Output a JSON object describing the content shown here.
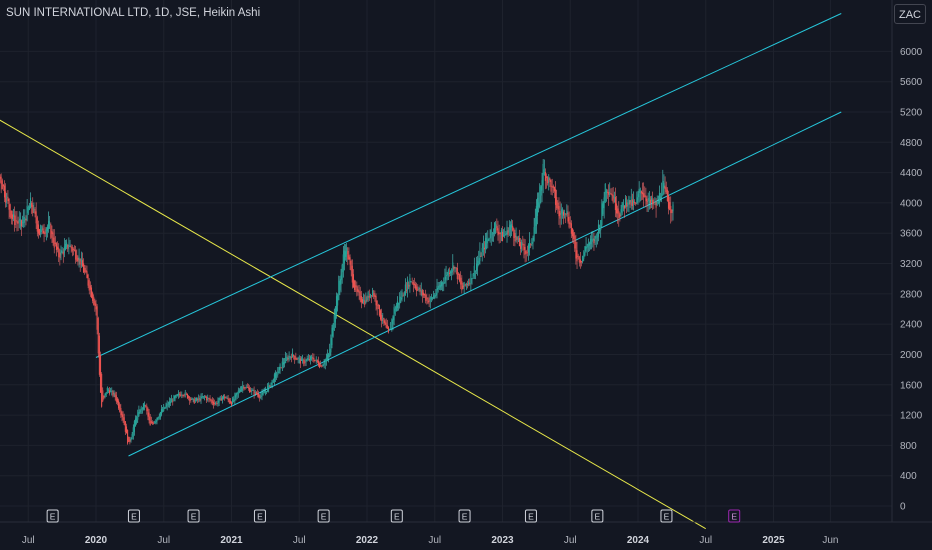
{
  "header": {
    "title": "SUN INTERNATIONAL LTD, 1D, JSE, Heikin Ashi"
  },
  "currency": "ZAC",
  "chart_data": {
    "type": "candlestick",
    "ylim": [
      -300,
      6400
    ],
    "y_ticks": [
      "6000",
      "5600",
      "5200",
      "4800",
      "4400",
      "4000",
      "3600",
      "3200",
      "2800",
      "2400",
      "2000",
      "1600",
      "1200",
      "800",
      "400",
      "0"
    ],
    "y_tick_values": [
      6000,
      5600,
      5200,
      4800,
      4400,
      4000,
      3600,
      3200,
      2800,
      2400,
      2000,
      1600,
      1200,
      800,
      400,
      0
    ],
    "x_ticks": [
      {
        "label": "Jul",
        "t": 2019.5,
        "year": false
      },
      {
        "label": "2020",
        "t": 2020.0,
        "year": true
      },
      {
        "label": "Jul",
        "t": 2020.5,
        "year": false
      },
      {
        "label": "2021",
        "t": 2021.0,
        "year": true
      },
      {
        "label": "Jul",
        "t": 2021.5,
        "year": false
      },
      {
        "label": "2022",
        "t": 2022.0,
        "year": true
      },
      {
        "label": "Jul",
        "t": 2022.5,
        "year": false
      },
      {
        "label": "2023",
        "t": 2023.0,
        "year": true
      },
      {
        "label": "Jul",
        "t": 2023.5,
        "year": false
      },
      {
        "label": "2024",
        "t": 2024.0,
        "year": true
      },
      {
        "label": "Jul",
        "t": 2024.5,
        "year": false
      },
      {
        "label": "2025",
        "t": 2025.0,
        "year": true
      },
      {
        "label": "Jun",
        "t": 2025.42,
        "year": false
      }
    ],
    "earnings_markers": [
      {
        "label": "E",
        "t": 2019.03,
        "future": false
      },
      {
        "label": "E",
        "t": 2019.68,
        "future": false
      },
      {
        "label": "E",
        "t": 2020.28,
        "future": false
      },
      {
        "label": "E",
        "t": 2020.72,
        "future": false
      },
      {
        "label": "E",
        "t": 2021.21,
        "future": false
      },
      {
        "label": "E",
        "t": 2021.68,
        "future": false
      },
      {
        "label": "E",
        "t": 2022.22,
        "future": false
      },
      {
        "label": "E",
        "t": 2022.72,
        "future": false
      },
      {
        "label": "E",
        "t": 2023.21,
        "future": false
      },
      {
        "label": "E",
        "t": 2023.7,
        "future": false
      },
      {
        "label": "E",
        "t": 2024.21,
        "future": false
      },
      {
        "label": "E",
        "t": 2024.71,
        "future": true
      }
    ],
    "price_path": [
      {
        "t": 2018.95,
        "v": 5050
      },
      {
        "t": 2019.05,
        "v": 4750
      },
      {
        "t": 2019.12,
        "v": 4950
      },
      {
        "t": 2019.2,
        "v": 4550
      },
      {
        "t": 2019.3,
        "v": 4300
      },
      {
        "t": 2019.38,
        "v": 3800
      },
      {
        "t": 2019.45,
        "v": 3700
      },
      {
        "t": 2019.52,
        "v": 4000
      },
      {
        "t": 2019.58,
        "v": 3600
      },
      {
        "t": 2019.65,
        "v": 3700
      },
      {
        "t": 2019.72,
        "v": 3300
      },
      {
        "t": 2019.8,
        "v": 3450
      },
      {
        "t": 2019.88,
        "v": 3250
      },
      {
        "t": 2019.95,
        "v": 2900
      },
      {
        "t": 2020.0,
        "v": 2600
      },
      {
        "t": 2020.02,
        "v": 1900
      },
      {
        "t": 2020.04,
        "v": 1300
      },
      {
        "t": 2020.08,
        "v": 1550
      },
      {
        "t": 2020.14,
        "v": 1450
      },
      {
        "t": 2020.2,
        "v": 1150
      },
      {
        "t": 2020.24,
        "v": 800
      },
      {
        "t": 2020.3,
        "v": 1200
      },
      {
        "t": 2020.36,
        "v": 1350
      },
      {
        "t": 2020.4,
        "v": 1050
      },
      {
        "t": 2020.48,
        "v": 1250
      },
      {
        "t": 2020.56,
        "v": 1400
      },
      {
        "t": 2020.64,
        "v": 1500
      },
      {
        "t": 2020.72,
        "v": 1380
      },
      {
        "t": 2020.8,
        "v": 1440
      },
      {
        "t": 2020.88,
        "v": 1350
      },
      {
        "t": 2020.94,
        "v": 1450
      },
      {
        "t": 2021.0,
        "v": 1360
      },
      {
        "t": 2021.08,
        "v": 1600
      },
      {
        "t": 2021.16,
        "v": 1500
      },
      {
        "t": 2021.22,
        "v": 1450
      },
      {
        "t": 2021.3,
        "v": 1650
      },
      {
        "t": 2021.38,
        "v": 1900
      },
      {
        "t": 2021.44,
        "v": 2000
      },
      {
        "t": 2021.52,
        "v": 1900
      },
      {
        "t": 2021.6,
        "v": 1950
      },
      {
        "t": 2021.66,
        "v": 1850
      },
      {
        "t": 2021.72,
        "v": 2000
      },
      {
        "t": 2021.76,
        "v": 2600
      },
      {
        "t": 2021.8,
        "v": 3000
      },
      {
        "t": 2021.84,
        "v": 3450
      },
      {
        "t": 2021.88,
        "v": 3100
      },
      {
        "t": 2021.92,
        "v": 2800
      },
      {
        "t": 2021.98,
        "v": 2700
      },
      {
        "t": 2022.04,
        "v": 2850
      },
      {
        "t": 2022.1,
        "v": 2500
      },
      {
        "t": 2022.16,
        "v": 2250
      },
      {
        "t": 2022.2,
        "v": 2600
      },
      {
        "t": 2022.26,
        "v": 2800
      },
      {
        "t": 2022.32,
        "v": 3000
      },
      {
        "t": 2022.38,
        "v": 2850
      },
      {
        "t": 2022.46,
        "v": 2700
      },
      {
        "t": 2022.52,
        "v": 2850
      },
      {
        "t": 2022.58,
        "v": 3050
      },
      {
        "t": 2022.64,
        "v": 3200
      },
      {
        "t": 2022.7,
        "v": 2850
      },
      {
        "t": 2022.76,
        "v": 3000
      },
      {
        "t": 2022.82,
        "v": 3250
      },
      {
        "t": 2022.88,
        "v": 3500
      },
      {
        "t": 2022.94,
        "v": 3700
      },
      {
        "t": 2023.0,
        "v": 3550
      },
      {
        "t": 2023.06,
        "v": 3700
      },
      {
        "t": 2023.12,
        "v": 3450
      },
      {
        "t": 2023.18,
        "v": 3350
      },
      {
        "t": 2023.22,
        "v": 3550
      },
      {
        "t": 2023.26,
        "v": 4000
      },
      {
        "t": 2023.3,
        "v": 4450
      },
      {
        "t": 2023.34,
        "v": 4300
      },
      {
        "t": 2023.38,
        "v": 4100
      },
      {
        "t": 2023.42,
        "v": 3800
      },
      {
        "t": 2023.46,
        "v": 3950
      },
      {
        "t": 2023.5,
        "v": 3700
      },
      {
        "t": 2023.54,
        "v": 3300
      },
      {
        "t": 2023.58,
        "v": 3250
      },
      {
        "t": 2023.62,
        "v": 3450
      },
      {
        "t": 2023.68,
        "v": 3500
      },
      {
        "t": 2023.72,
        "v": 3750
      },
      {
        "t": 2023.76,
        "v": 4250
      },
      {
        "t": 2023.8,
        "v": 4150
      },
      {
        "t": 2023.86,
        "v": 3850
      },
      {
        "t": 2023.92,
        "v": 4050
      },
      {
        "t": 2023.98,
        "v": 3950
      },
      {
        "t": 2024.02,
        "v": 4200
      },
      {
        "t": 2024.08,
        "v": 4000
      },
      {
        "t": 2024.14,
        "v": 3950
      },
      {
        "t": 2024.18,
        "v": 4250
      },
      {
        "t": 2024.22,
        "v": 4000
      },
      {
        "t": 2024.26,
        "v": 3900
      }
    ],
    "trendlines": [
      {
        "name": "",
        "color": "#e8e84a",
        "points": [
          {
            "t": 2018.8,
            "v": 5600
          },
          {
            "t": 2024.5,
            "v": -300
          }
        ]
      },
      {
        "name": "",
        "color": "#26c6da",
        "points": [
          {
            "t": 2020.0,
            "v": 1960
          },
          {
            "t": 2025.5,
            "v": 6500
          }
        ]
      },
      {
        "name": "",
        "color": "#26c6da",
        "points": [
          {
            "t": 2020.24,
            "v": 660
          },
          {
            "t": 2025.5,
            "v": 5200
          }
        ]
      }
    ]
  }
}
